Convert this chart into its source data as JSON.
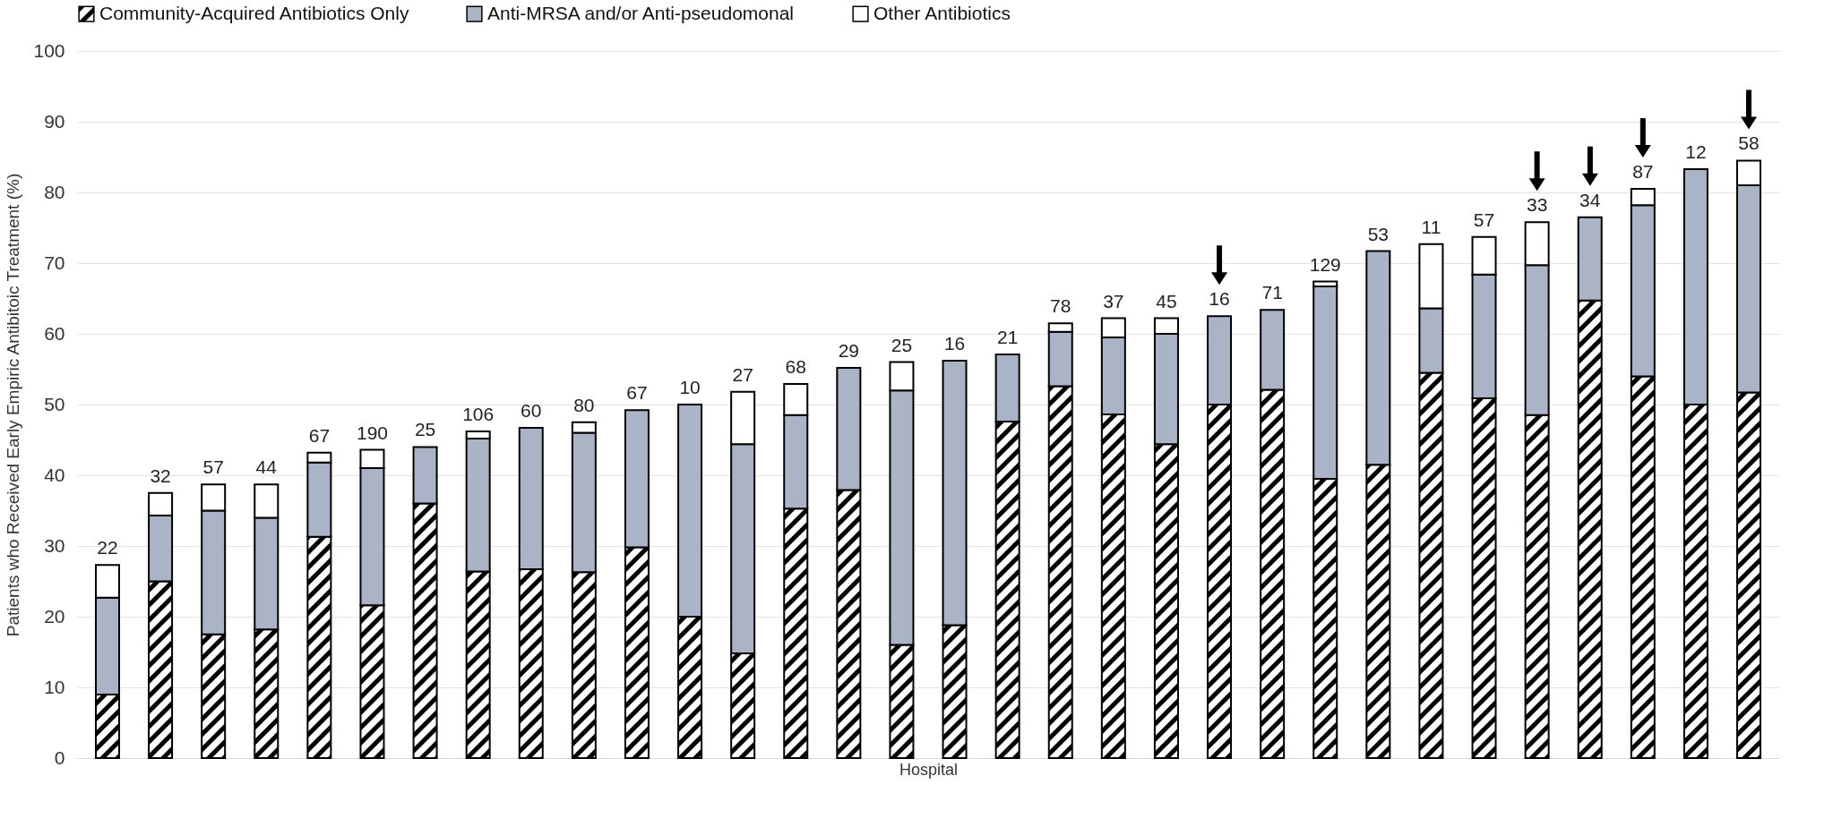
{
  "chart_data": {
    "type": "bar",
    "stacked": true,
    "xlabel": "Hospital",
    "ylabel": "Patients who Received Early Empiric Antibitoic Treatment (%)",
    "categories": [
      null,
      null,
      null,
      null,
      null,
      null,
      null,
      null,
      null,
      null,
      null,
      null,
      null,
      null,
      null,
      null,
      null,
      null,
      null,
      null,
      null,
      null,
      null,
      null,
      null,
      null,
      null,
      null,
      null,
      null,
      null,
      null
    ],
    "series": [
      {
        "name": "Community-Acquired Antibiotics Only",
        "color": "#000000",
        "values": [
          9,
          25,
          17.5,
          18.2,
          31.3,
          21.6,
          36,
          26.4,
          26.7,
          26.3,
          29.8,
          20,
          14.8,
          35.3,
          37.9,
          16,
          18.8,
          47.6,
          52.6,
          48.6,
          44.4,
          50,
          52.1,
          39.5,
          41.5,
          54.5,
          50.9,
          48.5,
          64.7,
          54,
          50,
          51.7
        ]
      },
      {
        "name": "Anti-MRSA and/or Anti-pseudomonal",
        "color": "#aab4c6",
        "values": [
          13.7,
          9.3,
          17.5,
          15.8,
          10.5,
          19.4,
          8,
          18.8,
          20,
          19.7,
          19.4,
          30,
          29.6,
          13.2,
          17.3,
          36,
          37.4,
          9.5,
          7.7,
          10.9,
          15.6,
          12.5,
          11.3,
          27.2,
          30.2,
          9.1,
          17.5,
          21.2,
          11.8,
          24.2,
          33.3,
          29.3
        ]
      },
      {
        "name": "Other Antibiotics",
        "color": "#ffffff",
        "values": [
          4.6,
          3.2,
          3.7,
          4.7,
          1.4,
          2.6,
          0,
          1,
          0,
          1.5,
          0,
          0,
          7.4,
          4.4,
          0,
          4,
          0,
          0,
          1.2,
          2.7,
          2.2,
          0,
          0,
          0.7,
          0,
          9.1,
          5.3,
          6.1,
          0,
          2.3,
          0,
          3.5
        ]
      }
    ],
    "ylim": [
      0,
      100
    ],
    "yticks": [
      0,
      10,
      20,
      30,
      40,
      50,
      60,
      70,
      80,
      90,
      100
    ],
    "grid": "y",
    "legend": "top left",
    "annotations": [
      {
        "text": "22",
        "y": 27.3
      },
      {
        "text": "32",
        "y": 37.5
      },
      {
        "text": "57",
        "y": 38.7
      },
      {
        "text": "44",
        "y": 38.7
      },
      {
        "text": "67",
        "y": 43.2
      },
      {
        "text": "190",
        "y": 43.6
      },
      {
        "text": "25",
        "y": 44
      },
      {
        "text": "106",
        "y": 46.2
      },
      {
        "text": "60",
        "y": 46.7
      },
      {
        "text": "80",
        "y": 47.5
      },
      {
        "text": "67",
        "y": 49.2
      },
      {
        "text": "10",
        "y": 50
      },
      {
        "text": "27",
        "y": 51.8
      },
      {
        "text": "68",
        "y": 52.9
      },
      {
        "text": "29",
        "y": 55.2
      },
      {
        "text": "25",
        "y": 56
      },
      {
        "text": "16",
        "y": 56.2
      },
      {
        "text": "21",
        "y": 57.1
      },
      {
        "text": "78",
        "y": 61.5
      },
      {
        "text": "37",
        "y": 62.2
      },
      {
        "text": "45",
        "y": 62.2
      },
      {
        "text": "16",
        "y": 62.5
      },
      {
        "text": "71",
        "y": 63.4
      },
      {
        "text": "129",
        "y": 67.4
      },
      {
        "text": "53",
        "y": 71.7
      },
      {
        "text": "11",
        "y": 72.7
      },
      {
        "text": "57",
        "y": 73.7
      },
      {
        "text": "33",
        "y": 75.8
      },
      {
        "text": "34",
        "y": 76.5
      },
      {
        "text": "87",
        "y": 80.5
      },
      {
        "text": "12",
        "y": 83.3
      },
      {
        "text": "58",
        "y": 84.5
      }
    ]
  }
}
